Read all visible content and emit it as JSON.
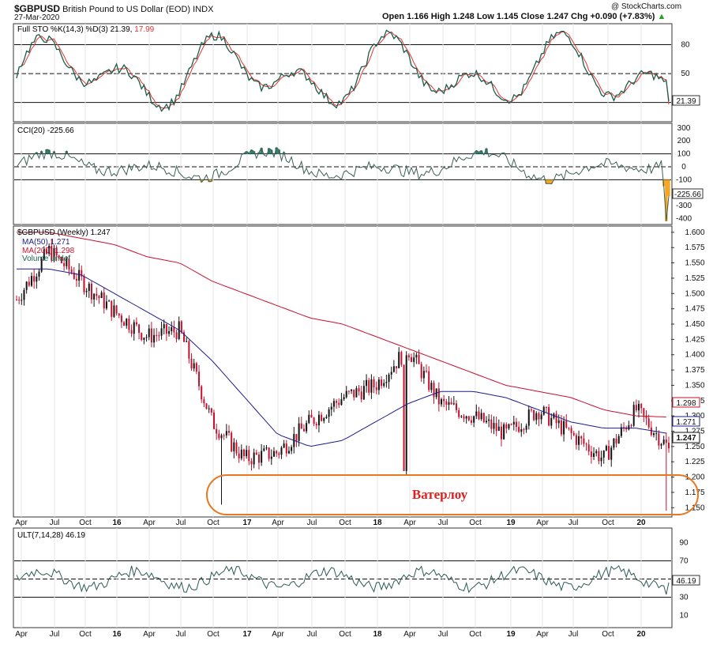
{
  "header": {
    "symbol": "$GBPUSD",
    "name": "British Pound to US Dollar (EOD)",
    "exchange": "INDX",
    "date": "27-Mar-2020",
    "watermark": "@ StockCharts.com",
    "ohlc": "Open 1.166  High 1.248  Low 1.145  Close 1.247  Chg +0.090 (+7.83%)",
    "ohlc_marker": "▲"
  },
  "panels": {
    "sto": {
      "label": "Full STO %K(14,3) %D(3) 21.39,",
      "label_d": "17.99",
      "ticks": [
        "80",
        "50",
        "20"
      ],
      "last": "21.39"
    },
    "cci": {
      "label": "CCI(20) -225.66",
      "ticks": [
        "300",
        "200",
        "100",
        "0",
        "-100",
        "-200",
        "-300",
        "-400"
      ],
      "last": "-225.66"
    },
    "price": {
      "label": "$GBPUSD (Weekly) 1.247",
      "ma50": "MA(50) 1.271",
      "ma200": "MA(200) 1.298",
      "volume": "Volume undef",
      "ticks": [
        "1.600",
        "1.575",
        "1.550",
        "1.525",
        "1.500",
        "1.475",
        "1.450",
        "1.425",
        "1.400",
        "1.375",
        "1.350",
        "1.325",
        "1.300",
        "1.275",
        "1.250",
        "1.225",
        "1.200",
        "1.175",
        "1.150"
      ],
      "last_price": "1.247",
      "last_ma50": "1.271",
      "last_ma200": "1.298",
      "annotation": "Ватерлоу"
    },
    "ult": {
      "label": "ULT(7,14,28) 46.19",
      "ticks": [
        "90",
        "70",
        "50",
        "30",
        "10"
      ],
      "last": "46.19"
    }
  },
  "x_axis": [
    "Apr",
    "Jul",
    "Oct",
    "16",
    "Apr",
    "Jul",
    "Oct",
    "17",
    "Apr",
    "Jul",
    "Oct",
    "18",
    "Apr",
    "Jul",
    "Oct",
    "19",
    "Apr",
    "Jul",
    "Oct",
    "20"
  ],
  "colors": {
    "up": "#111111",
    "down": "#c8102e",
    "ma50": "#1c1c8c",
    "ma200": "#c8102e",
    "sto_k": "#1d5c4c",
    "sto_d": "#e3342f",
    "cci_fill_pos": "#2d7d6a",
    "cci_fill_neg": "#f5a623",
    "annotation": "#e87722"
  },
  "chart_data": {
    "type": "candlestick",
    "title": "$GBPUSD (Weekly)",
    "x": [
      "2015-03",
      "2015-06",
      "2015-09",
      "2015-12",
      "2016-03",
      "2016-06",
      "2016-09",
      "2016-12",
      "2017-03",
      "2017-06",
      "2017-09",
      "2017-12",
      "2018-03",
      "2018-06",
      "2018-09",
      "2018-12",
      "2019-03",
      "2019-06",
      "2019-09",
      "2019-12",
      "2020-03"
    ],
    "close": [
      1.49,
      1.57,
      1.52,
      1.47,
      1.43,
      1.44,
      1.29,
      1.23,
      1.24,
      1.29,
      1.33,
      1.35,
      1.41,
      1.32,
      1.3,
      1.27,
      1.31,
      1.27,
      1.23,
      1.31,
      1.247
    ],
    "ma50": [
      1.54,
      1.54,
      1.53,
      1.5,
      1.47,
      1.44,
      1.39,
      1.33,
      1.27,
      1.25,
      1.26,
      1.29,
      1.32,
      1.34,
      1.34,
      1.33,
      1.31,
      1.29,
      1.28,
      1.28,
      1.271
    ],
    "ma200": [
      1.6,
      1.6,
      1.59,
      1.58,
      1.56,
      1.55,
      1.52,
      1.5,
      1.48,
      1.46,
      1.45,
      1.43,
      1.41,
      1.39,
      1.37,
      1.35,
      1.34,
      1.33,
      1.31,
      1.3,
      1.298
    ],
    "ylim": [
      1.14,
      1.605
    ],
    "annotation_range": [
      1.145,
      1.205
    ]
  }
}
